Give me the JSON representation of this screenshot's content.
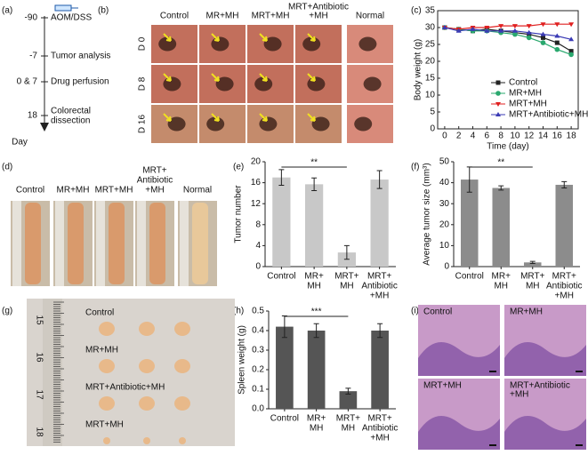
{
  "panel_labels": [
    "(a)",
    "(b)",
    "(c)",
    "(d)",
    "(e)",
    "(f)",
    "(g)",
    "(h)",
    "(i)"
  ],
  "timeline": {
    "events": [
      {
        "day": "-90",
        "label": "AOM/DSS"
      },
      {
        "day": "-7",
        "label": "Tumor analysis"
      },
      {
        "day": "0 & 7",
        "label": "Drug perfusion"
      },
      {
        "day": "18",
        "label": [
          "Colorectal",
          "dissection"
        ]
      }
    ],
    "axis_label": "Day"
  },
  "endoscopy": {
    "columns": [
      [
        "Control"
      ],
      [
        "MR+MH"
      ],
      [
        "MRT+MH"
      ],
      [
        "MRT+Antibiotic",
        "+MH"
      ],
      [
        "Normal"
      ]
    ],
    "rows": [
      "D 0",
      "D 8",
      "D 16"
    ]
  },
  "colon_photos": {
    "labels": [
      [
        "Control"
      ],
      [
        "MR+MH"
      ],
      [
        "MRT+MH"
      ],
      [
        "MRT+",
        "Antibiotic",
        "+MH"
      ],
      [
        "Normal"
      ]
    ]
  },
  "spleen_photo": {
    "ruler": [
      "15",
      "16",
      "17",
      "18"
    ],
    "groups": [
      "Control",
      "MR+MH",
      "MRT+Antibiotic+MH",
      "MRT+MH"
    ]
  },
  "histology": {
    "labels": [
      [
        "Control"
      ],
      [
        "MR+MH"
      ],
      [
        "MRT+MH"
      ],
      [
        "MRT+Antibiotic",
        "+MH"
      ]
    ]
  },
  "chart_data": [
    {
      "type": "line",
      "ylabel": "Body weight (g)",
      "xlabel": "Time (day)",
      "x": [
        0,
        2,
        4,
        6,
        8,
        10,
        12,
        14,
        16,
        18
      ],
      "xlim": [
        -1,
        19
      ],
      "xticks": [
        0,
        2,
        4,
        6,
        8,
        10,
        12,
        14,
        16,
        18
      ],
      "ylim": [
        0,
        35
      ],
      "yticks": [
        0,
        5,
        10,
        15,
        20,
        25,
        30,
        35
      ],
      "legend": "lower right",
      "series": [
        {
          "name": "Control",
          "color": "#222222",
          "marker": "square",
          "values": [
            30,
            29.5,
            29,
            29.5,
            29,
            28.5,
            28,
            27,
            25.5,
            23
          ]
        },
        {
          "name": "MR+MH",
          "color": "#2aa86e",
          "marker": "circle",
          "values": [
            30,
            29.5,
            29,
            29,
            28.5,
            28,
            27,
            25.5,
            23.5,
            22
          ]
        },
        {
          "name": "MRT+MH",
          "color": "#e02020",
          "marker": "triangle-down",
          "values": [
            30,
            29.5,
            30,
            30,
            30.5,
            30.5,
            30.5,
            31,
            31,
            31
          ]
        },
        {
          "name": "MRT+Antibiotic+MH",
          "color": "#3b3bb5",
          "marker": "triangle-up",
          "values": [
            30,
            29,
            29.5,
            29,
            29,
            29,
            28.5,
            28,
            27.5,
            26.5
          ]
        }
      ]
    },
    {
      "type": "bar",
      "ylabel": "Tumor number",
      "color": "#c8c8c8",
      "categories": [
        [
          "Control"
        ],
        [
          "MR+",
          "MH"
        ],
        [
          "MRT+",
          "MH"
        ],
        [
          "MRT+",
          "Antibiotic",
          "+MH"
        ]
      ],
      "values": [
        17,
        15.7,
        2.7,
        16.6
      ],
      "errors": [
        1.5,
        1.2,
        1.3,
        1.7
      ],
      "ylim": [
        0,
        20
      ],
      "yticks": [
        0,
        4,
        8,
        12,
        16,
        20
      ],
      "annotation": "**"
    },
    {
      "type": "bar",
      "ylabel": "Average tumor size (mm³)",
      "color": "#8c8c8c",
      "categories": [
        [
          "Control"
        ],
        [
          "MR+",
          "MH"
        ],
        [
          "MRT+",
          "MH"
        ],
        [
          "MRT+",
          "Antibiotic",
          "+MH"
        ]
      ],
      "values": [
        41.5,
        37.5,
        2,
        39
      ],
      "errors": [
        6,
        1,
        0.5,
        1.5
      ],
      "ylim": [
        0,
        50
      ],
      "yticks": [
        0,
        10,
        20,
        30,
        40,
        50
      ],
      "annotation": "**"
    },
    {
      "type": "bar",
      "ylabel": "Spleen weight (g)",
      "color": "#555555",
      "categories": [
        [
          "Control"
        ],
        [
          "MR+",
          "MH"
        ],
        [
          "MRT+",
          "MH"
        ],
        [
          "MRT+",
          "Antibiotic",
          "+MH"
        ]
      ],
      "values": [
        0.42,
        0.4,
        0.09,
        0.4
      ],
      "errors": [
        0.055,
        0.035,
        0.015,
        0.035
      ],
      "ylim": [
        0,
        0.5
      ],
      "yticks": [
        {
          "value": 0,
          "label": "0.0"
        },
        0.1,
        0.2,
        0.3,
        0.4,
        0.5
      ],
      "annotation": "***"
    }
  ]
}
